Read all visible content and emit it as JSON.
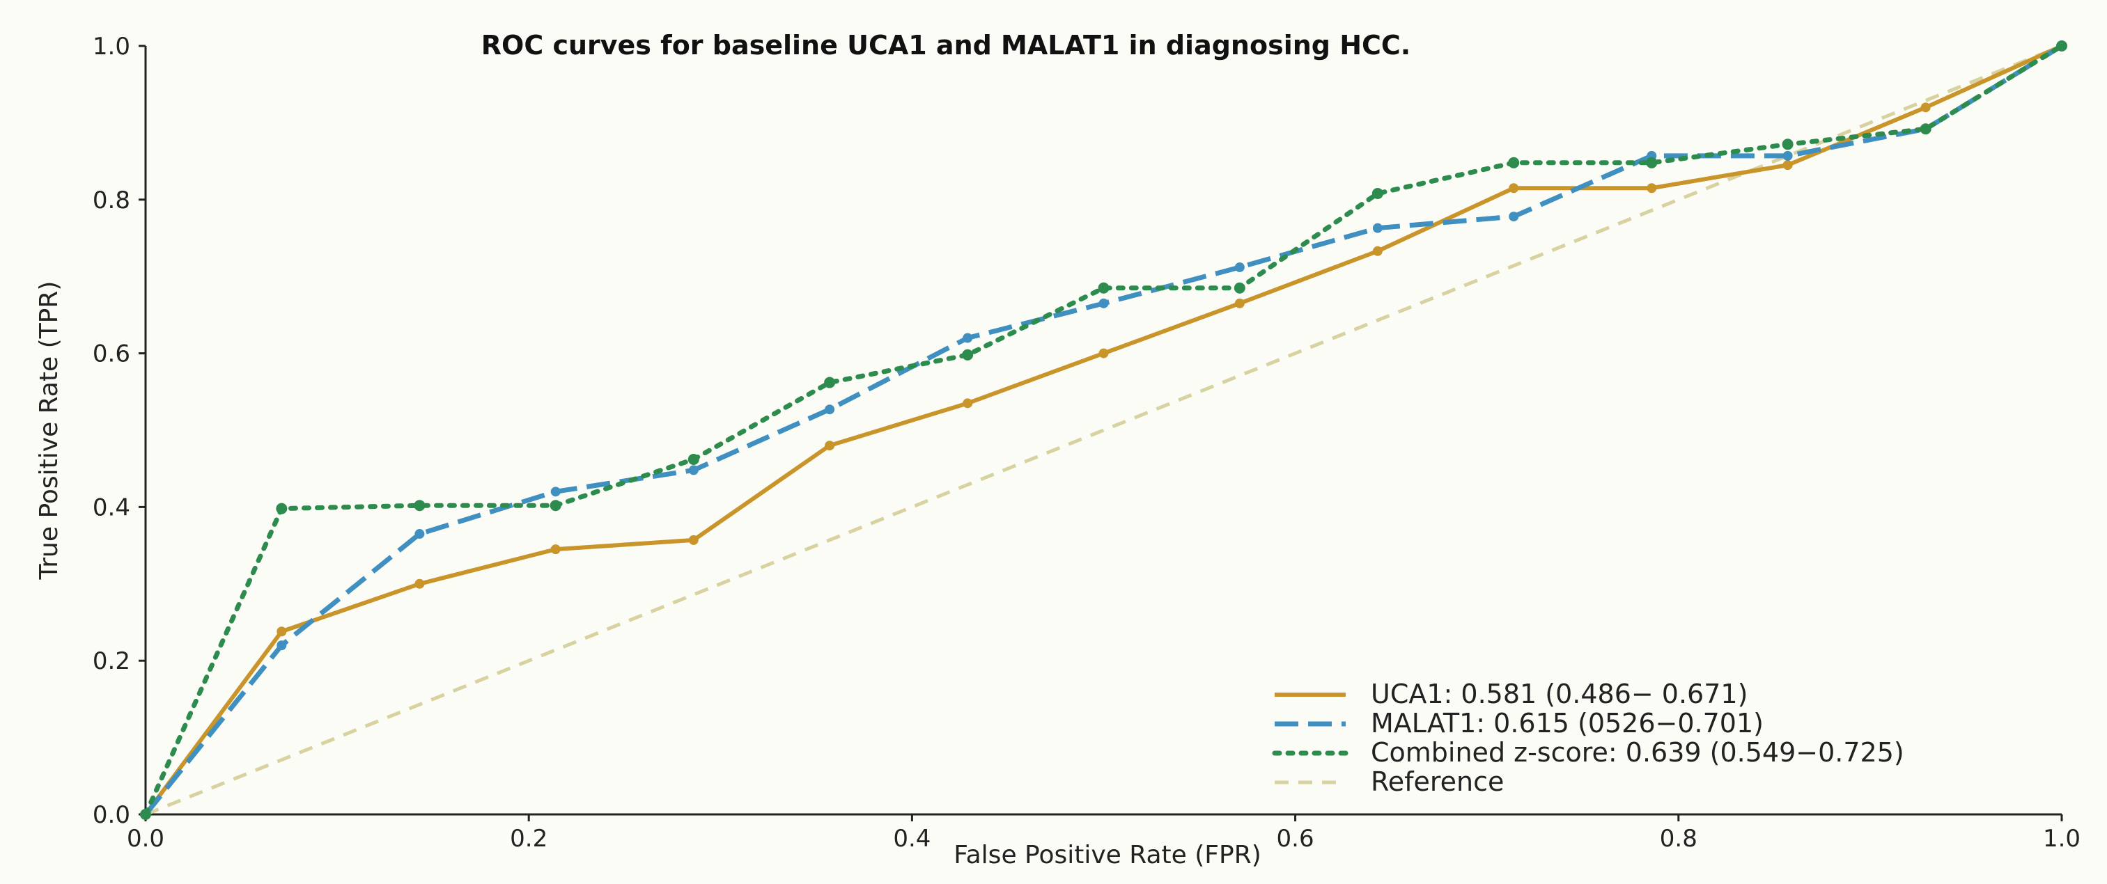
{
  "chart_data": {
    "type": "line",
    "title": "ROC curves for baseline UCA1 and MALAT1 in diagnosing HCC.",
    "xlabel": "False Positive Rate (FPR)",
    "ylabel": "True Positive Rate (TPR)",
    "xlim": [
      0.0,
      1.0
    ],
    "ylim": [
      0.0,
      1.0
    ],
    "xticks": [
      "0.0",
      "0.2",
      "0.4",
      "0.6",
      "0.8",
      "1.0"
    ],
    "yticks": [
      "0.0",
      "0.2",
      "0.4",
      "0.6",
      "0.8",
      "1.0"
    ],
    "grid": false,
    "legend_position": "bottom-right",
    "series": [
      {
        "name": "UCA1: 0.581 (0.486− 0.671)",
        "color": "#c9952a",
        "style": "solid",
        "x": [
          0.0,
          0.071,
          0.143,
          0.214,
          0.286,
          0.357,
          0.429,
          0.5,
          0.571,
          0.643,
          0.714,
          0.786,
          0.857,
          0.929,
          1.0
        ],
        "y": [
          0.0,
          0.238,
          0.3,
          0.345,
          0.357,
          0.48,
          0.535,
          0.6,
          0.665,
          0.733,
          0.815,
          0.815,
          0.845,
          0.92,
          1.0
        ]
      },
      {
        "name": "MALAT1: 0.615 (0526−0.701)",
        "color": "#3f8fc0",
        "style": "dashed",
        "x": [
          0.0,
          0.071,
          0.143,
          0.214,
          0.286,
          0.357,
          0.429,
          0.5,
          0.571,
          0.643,
          0.714,
          0.786,
          0.857,
          0.929,
          1.0
        ],
        "y": [
          0.0,
          0.22,
          0.365,
          0.42,
          0.448,
          0.527,
          0.62,
          0.665,
          0.712,
          0.763,
          0.778,
          0.857,
          0.857,
          0.892,
          1.0
        ]
      },
      {
        "name": "Combined z-score: 0.639 (0.549−0.725)",
        "color": "#2e8b4e",
        "style": "dotted",
        "x": [
          0.0,
          0.071,
          0.143,
          0.214,
          0.286,
          0.357,
          0.429,
          0.5,
          0.571,
          0.643,
          0.714,
          0.786,
          0.857,
          0.929,
          1.0
        ],
        "y": [
          0.0,
          0.398,
          0.402,
          0.402,
          0.462,
          0.562,
          0.598,
          0.685,
          0.685,
          0.808,
          0.848,
          0.848,
          0.872,
          0.892,
          1.0
        ]
      },
      {
        "name": "Reference",
        "color": "#d8d2a0",
        "style": "dashed-light",
        "x": [
          0.0,
          1.0
        ],
        "y": [
          0.0,
          1.0
        ]
      }
    ]
  }
}
